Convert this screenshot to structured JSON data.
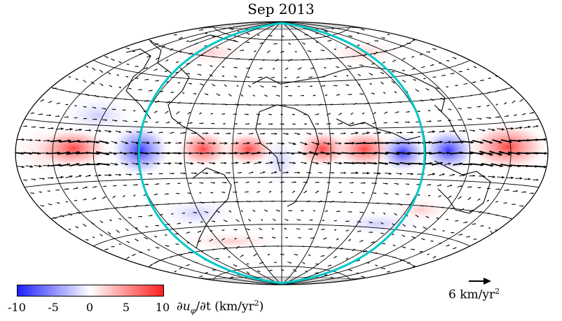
{
  "figure": {
    "title": "Sep 2013",
    "colorbar": {
      "tick_labels": [
        "-10",
        "-5",
        "0",
        "5",
        "10"
      ],
      "min": -10,
      "max": 10,
      "colors": [
        "#1f1fff",
        "#ffffff",
        "#ff1f1f"
      ],
      "label": "∂u_φ/∂t (km/yr²)",
      "label_parts": {
        "symbol": "∂u",
        "subscript": "φ",
        "rest": "/∂t (km/yr",
        "superscript": "2",
        "close": ")"
      }
    },
    "scale_arrow": {
      "label": "6 km/yr",
      "superscript": "2",
      "magnitude": 6
    },
    "map": {
      "projection": "hammer",
      "polar_caps_color": "#d9d9d9",
      "tangent_cylinder_color": "#00c8c8",
      "graticule_color": "#000000"
    }
  }
}
